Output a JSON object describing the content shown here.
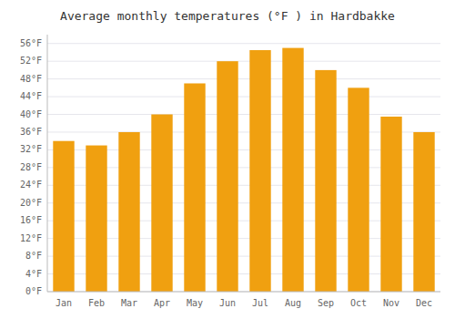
{
  "chart_data": {
    "type": "bar",
    "title": "Average monthly temperatures (°F ) in Hardbakke",
    "categories": [
      "Jan",
      "Feb",
      "Mar",
      "Apr",
      "May",
      "Jun",
      "Jul",
      "Aug",
      "Sep",
      "Oct",
      "Nov",
      "Dec"
    ],
    "values": [
      34.0,
      33.0,
      36.0,
      40.0,
      47.0,
      52.0,
      54.5,
      55.0,
      50.0,
      46.0,
      39.5,
      36.0
    ],
    "color": "#F0A010",
    "ylim": [
      0,
      58
    ],
    "yticks": [
      {
        "value": 0,
        "label": "0°F"
      },
      {
        "value": 4,
        "label": "4°F"
      },
      {
        "value": 8,
        "label": "8°F"
      },
      {
        "value": 12,
        "label": "12°F"
      },
      {
        "value": 16,
        "label": "16°F"
      },
      {
        "value": 20,
        "label": "20°F"
      },
      {
        "value": 24,
        "label": "24°F"
      },
      {
        "value": 28,
        "label": "28°F"
      },
      {
        "value": 32,
        "label": "32°F"
      },
      {
        "value": 36,
        "label": "36°F"
      },
      {
        "value": 40,
        "label": "40°F"
      },
      {
        "value": 44,
        "label": "44°F"
      },
      {
        "value": 48,
        "label": "48°F"
      },
      {
        "value": 52,
        "label": "52°F"
      },
      {
        "value": 56,
        "label": "56°F"
      }
    ],
    "grid": true
  }
}
